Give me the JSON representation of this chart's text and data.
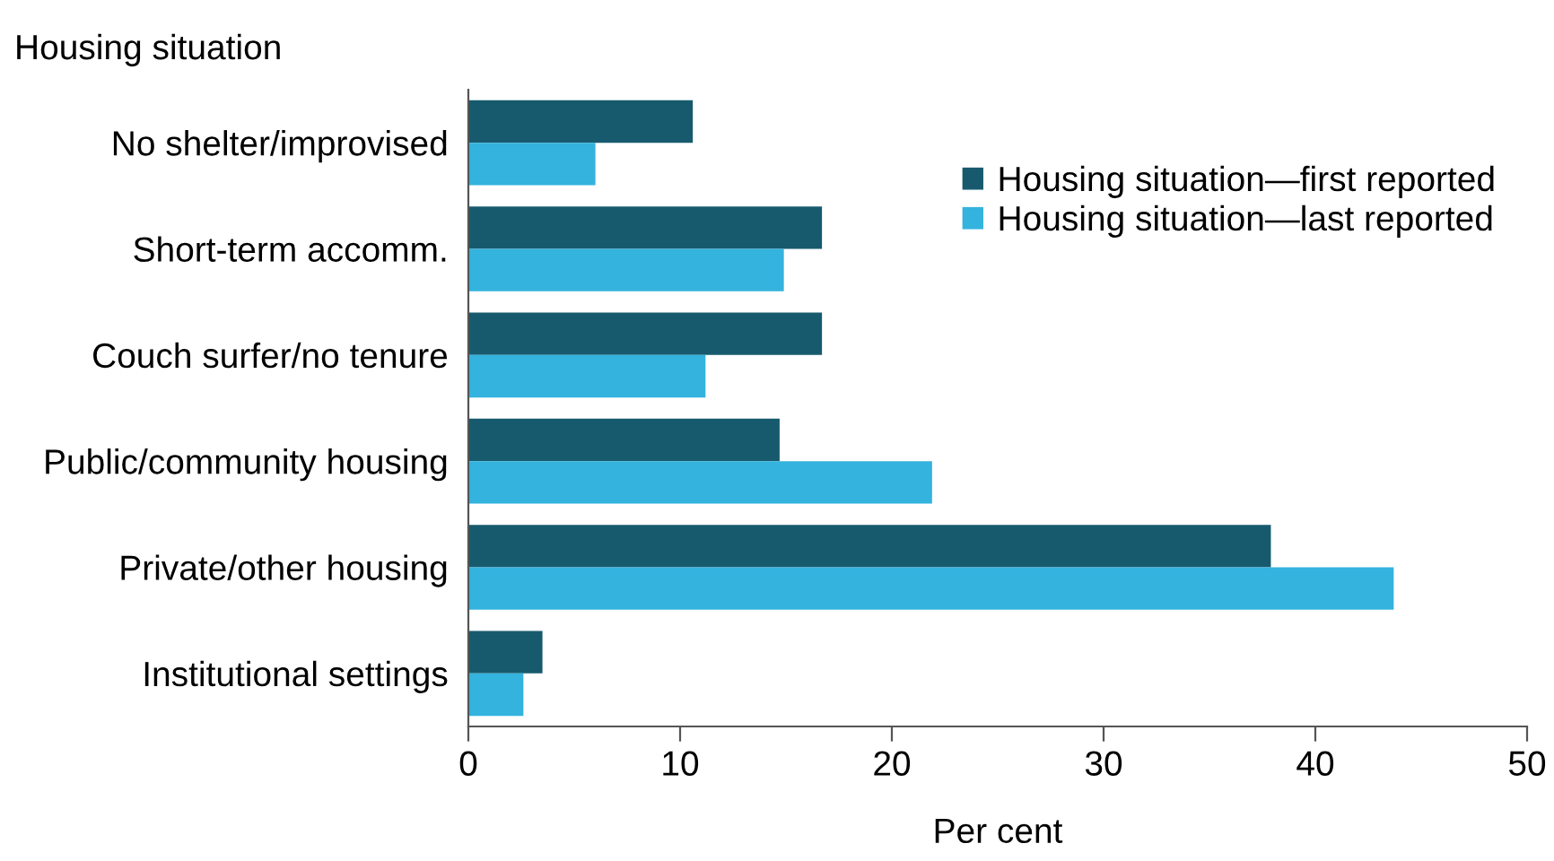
{
  "chart_data": {
    "type": "bar",
    "orientation": "horizontal",
    "subtitle": "Housing situation",
    "xlabel": "Per cent",
    "categories": [
      "No shelter/improvised",
      "Short-term accomm.",
      "Couch surfer/no tenure",
      "Public/community housing",
      "Private/other housing",
      "Institutional settings"
    ],
    "series": [
      {
        "name": "Housing situation—first reported",
        "color": "#175a6e",
        "values": [
          10.6,
          16.7,
          16.7,
          14.7,
          37.9,
          3.5
        ]
      },
      {
        "name": "Housing situation—last reported",
        "color": "#33b3dd",
        "values": [
          6.0,
          14.9,
          11.2,
          21.9,
          43.7,
          2.6
        ]
      }
    ],
    "xlim": [
      0,
      50
    ],
    "xticks": [
      0,
      10,
      20,
      30,
      40,
      50
    ],
    "grid": false,
    "legend": "top right"
  }
}
